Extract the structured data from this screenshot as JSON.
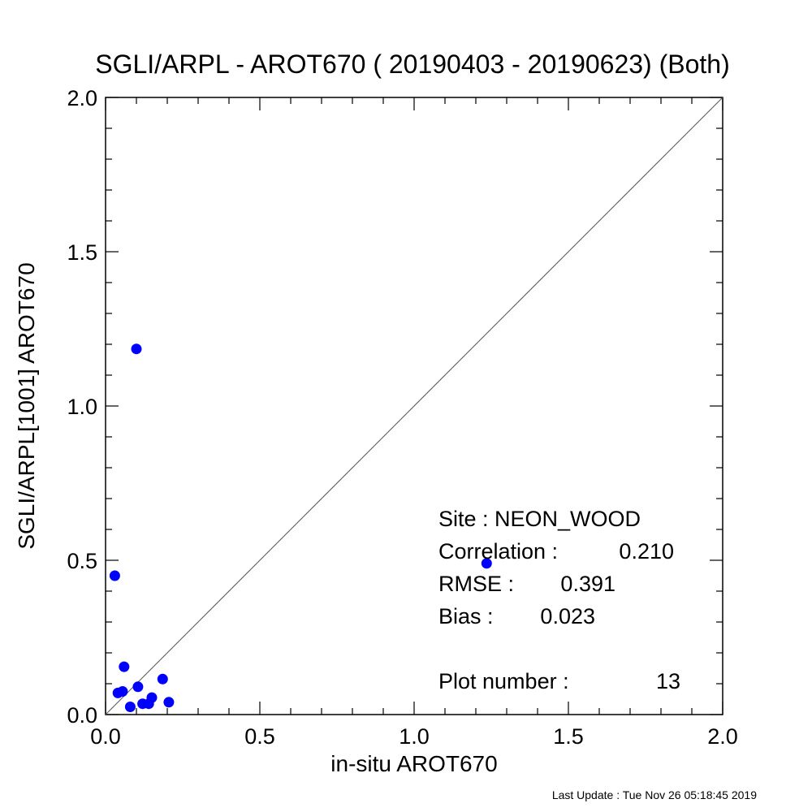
{
  "chart_data": {
    "type": "scatter",
    "title": "SGLI/ARPL - AROT670 ( 20190403 - 20190623) (Both)",
    "xlabel": "in-situ AROT670",
    "ylabel": "SGLI/ARPL[1001]    AROT670",
    "xlim": [
      0.0,
      2.0
    ],
    "ylim": [
      0.0,
      2.0
    ],
    "xticks": [
      "0.0",
      "0.5",
      "1.0",
      "1.5",
      "2.0"
    ],
    "yticks": [
      "0.0",
      "0.5",
      "1.0",
      "1.5",
      "2.0"
    ],
    "one_to_one_line": true,
    "grid": false,
    "point_color": "#0000ff",
    "points": [
      {
        "x": 0.03,
        "y": 0.45
      },
      {
        "x": 0.1,
        "y": 1.185
      },
      {
        "x": 0.06,
        "y": 0.155
      },
      {
        "x": 0.04,
        "y": 0.07
      },
      {
        "x": 0.055,
        "y": 0.075
      },
      {
        "x": 0.105,
        "y": 0.09
      },
      {
        "x": 0.08,
        "y": 0.025
      },
      {
        "x": 0.12,
        "y": 0.035
      },
      {
        "x": 0.14,
        "y": 0.035
      },
      {
        "x": 0.15,
        "y": 0.055
      },
      {
        "x": 0.185,
        "y": 0.115
      },
      {
        "x": 0.205,
        "y": 0.04
      },
      {
        "x": 1.235,
        "y": 0.49
      }
    ]
  },
  "stats": {
    "site": "Site : NEON_WOOD",
    "correlation_label": "Correlation :",
    "correlation_value": "0.210",
    "rmse_label": "RMSE :",
    "rmse_value": "0.391",
    "bias_label": "Bias :",
    "bias_value": "0.023",
    "plot_number_label": "Plot number :",
    "plot_number_value": "13"
  },
  "footer": {
    "last_update": "Last Update : Tue Nov 26 05:18:45 2019"
  }
}
